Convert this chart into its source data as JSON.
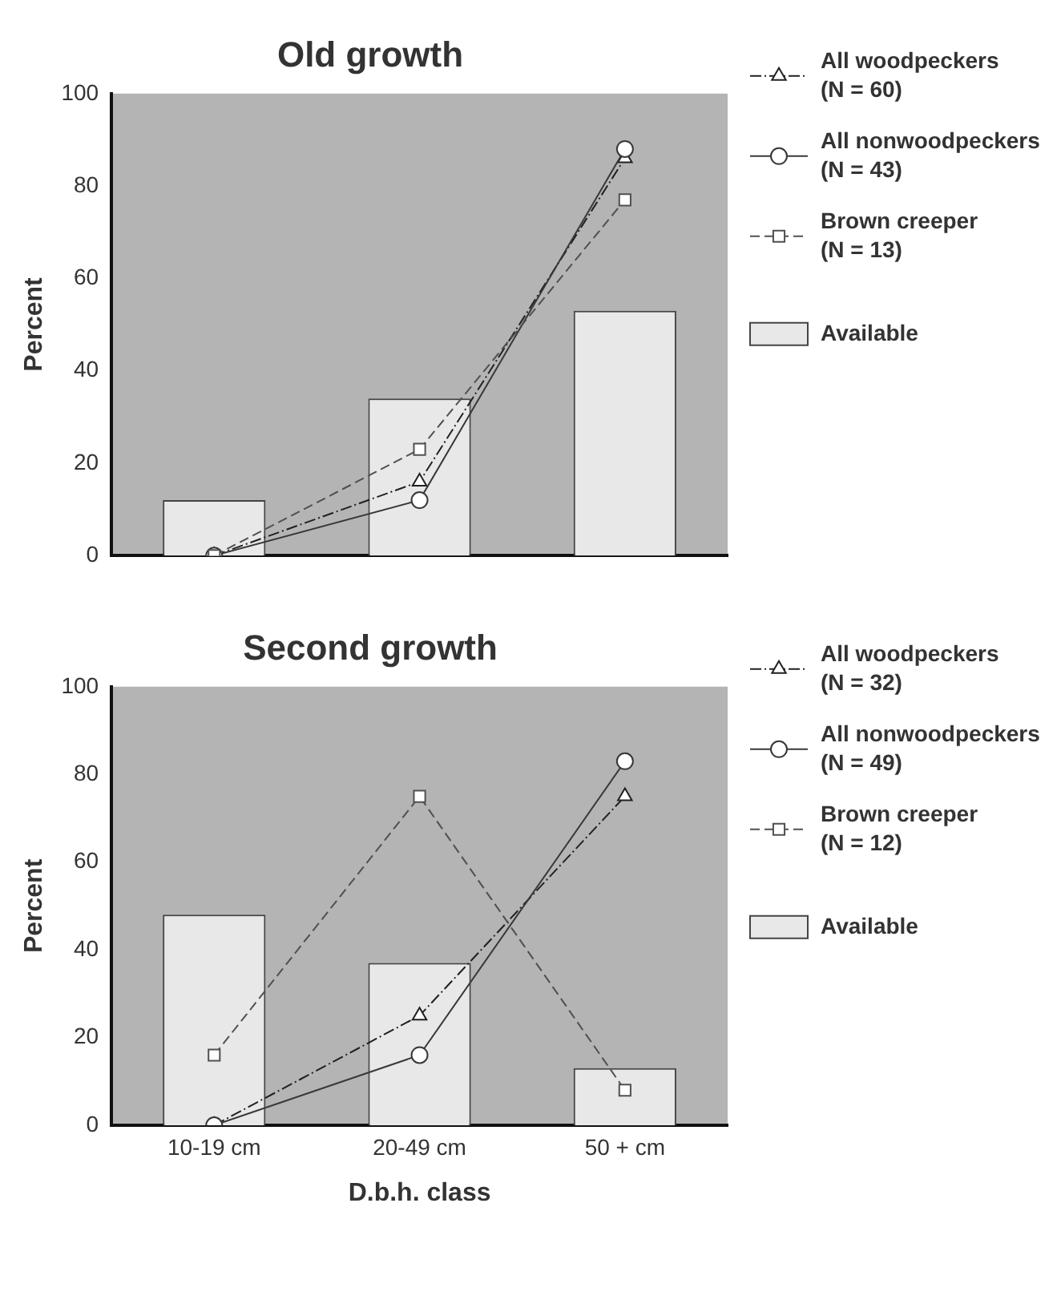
{
  "chart_data": [
    {
      "type": "bar",
      "title": "Old growth",
      "ylabel": "Percent",
      "categories": [
        null,
        null,
        null
      ],
      "ylim": [
        0,
        100
      ],
      "yticks": [
        0,
        20,
        40,
        60,
        80,
        100
      ],
      "tick_labels": "y",
      "legend": "right",
      "series": [
        {
          "name": "Available",
          "color": "#e8e8e8",
          "values": [
            12,
            34,
            53
          ]
        },
        {
          "name": "All woodpeckers\n(N = 60)",
          "type": "line",
          "color": "#202020",
          "marker": "triangle",
          "line_style": "dotted",
          "values": [
            0,
            16,
            86
          ]
        },
        {
          "name": "All nonwoodpeckers\n(N = 43)",
          "type": "line",
          "color": "#383838",
          "marker": "circle",
          "line_style": "solid",
          "values": [
            0,
            12,
            88
          ]
        },
        {
          "name": "Brown creeper\n(N = 13)",
          "type": "line",
          "color": "#505050",
          "marker": "square",
          "line_style": "dashed",
          "values": [
            0,
            23,
            77
          ]
        }
      ]
    },
    {
      "type": "bar",
      "title": "Second growth",
      "ylabel": "Percent",
      "xlabel": "D.b.h. class",
      "categories": [
        "10-19 cm",
        "20-49 cm",
        "50 + cm"
      ],
      "ylim": [
        0,
        100
      ],
      "yticks": [
        0,
        20,
        40,
        60,
        80,
        100
      ],
      "legend": "right",
      "series": [
        {
          "name": "Available",
          "color": "#e8e8e8",
          "values": [
            48,
            37,
            13
          ]
        },
        {
          "name": "All woodpeckers\n(N = 32)",
          "type": "line",
          "color": "#202020",
          "marker": "triangle",
          "line_style": "dotted",
          "values": [
            0,
            25,
            75
          ]
        },
        {
          "name": "All nonwoodpeckers\n(N = 49)",
          "type": "line",
          "color": "#383838",
          "marker": "circle",
          "line_style": "solid",
          "values": [
            0,
            16,
            83
          ]
        },
        {
          "name": "Brown creeper\n(N = 12)",
          "type": "line",
          "color": "#505050",
          "marker": "square",
          "line_style": "dashed",
          "values": [
            16,
            75,
            8
          ]
        }
      ]
    }
  ]
}
